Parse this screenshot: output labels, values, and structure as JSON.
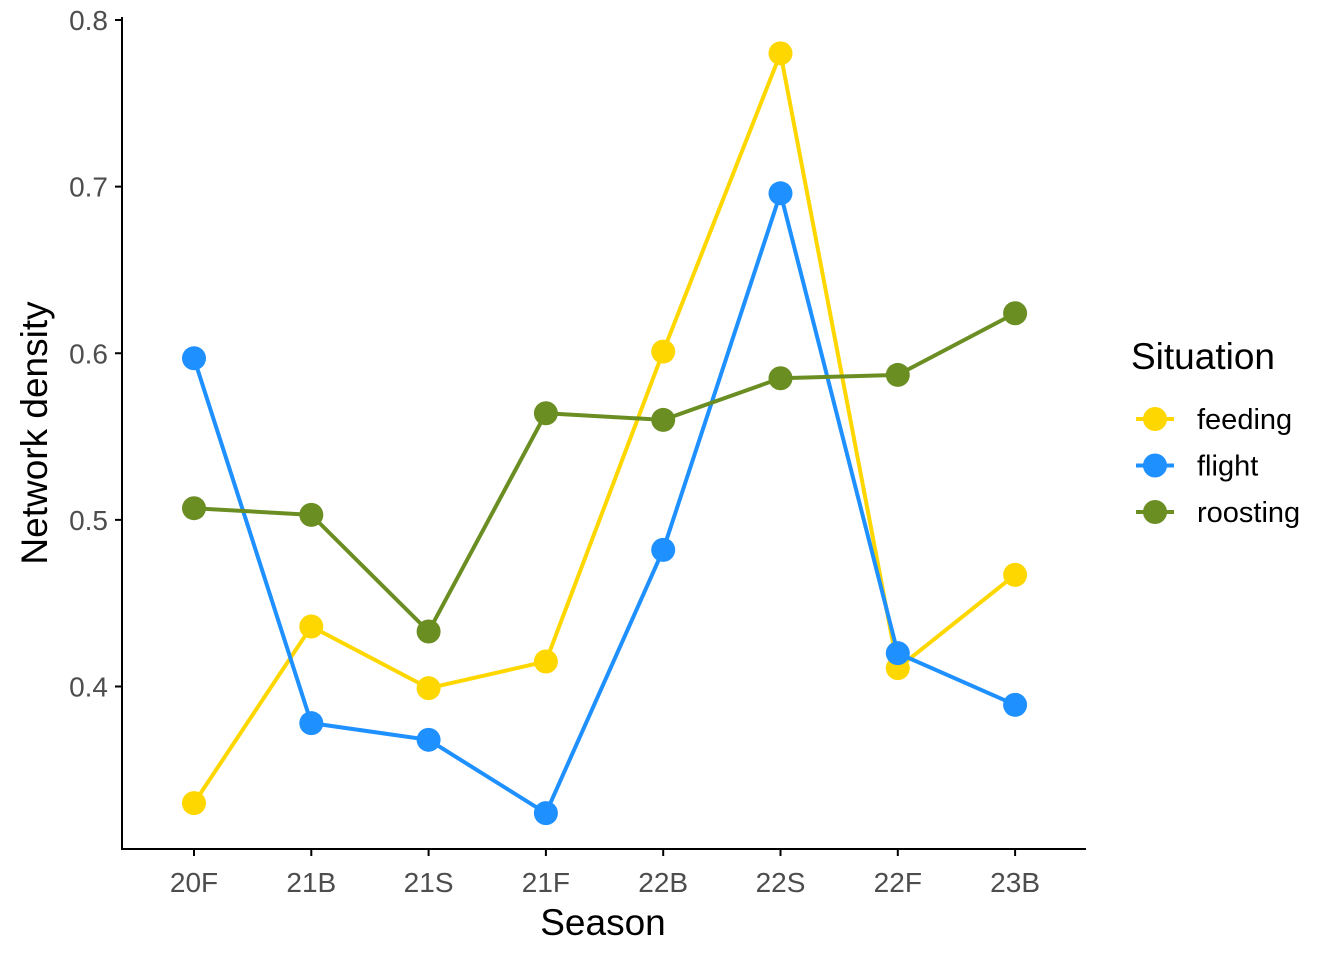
{
  "chart_data": {
    "type": "line",
    "title": "",
    "xlabel": "Season",
    "ylabel": "Network density",
    "categories": [
      "20F",
      "21B",
      "21S",
      "21F",
      "22B",
      "22S",
      "22F",
      "23B"
    ],
    "ylim": [
      0.3,
      0.8
    ],
    "yticks": [
      0.4,
      0.5,
      0.6,
      0.7,
      0.8
    ],
    "ytick_labels": [
      "0.4",
      "0.5",
      "0.6",
      "0.7",
      "0.8"
    ],
    "grid": false,
    "legend": {
      "title": "Situation",
      "position": "right"
    },
    "series": [
      {
        "name": "feeding",
        "color": "#FFD700",
        "values": [
          0.33,
          0.436,
          0.399,
          0.415,
          0.601,
          0.78,
          0.411,
          0.467
        ]
      },
      {
        "name": "flight",
        "color": "#1E90FF",
        "values": [
          0.597,
          0.378,
          0.368,
          0.324,
          0.482,
          0.696,
          0.42,
          0.389
        ]
      },
      {
        "name": "roosting",
        "color": "#6B8E23",
        "values": [
          0.507,
          0.503,
          0.433,
          0.564,
          0.56,
          0.585,
          0.587,
          0.624
        ]
      }
    ]
  }
}
